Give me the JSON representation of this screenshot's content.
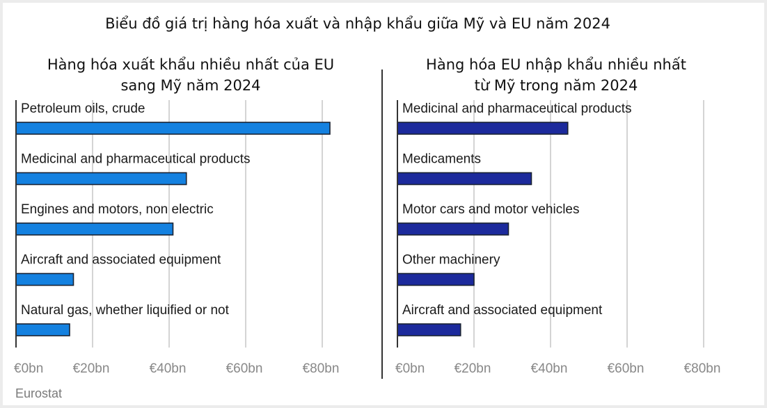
{
  "main_title": "Biểu đồ giá trị hàng hóa xuất và nhập khẩu giữa Mỹ và EU năm 2024",
  "source": "Eurostat",
  "chart_data": [
    {
      "type": "bar",
      "orientation": "horizontal",
      "title_lines": [
        "Hàng hóa xuất khẩu nhiều nhất của EU",
        "sang Mỹ năm 2024"
      ],
      "categories": [
        "Petroleum oils, crude",
        "Medicinal and pharmaceutical products",
        "Engines and motors, non electric",
        "Aircraft and associated equipment",
        "Natural gas, whether liquified or not"
      ],
      "values": [
        82,
        44.5,
        41,
        15,
        14
      ],
      "unit": "€bn",
      "xlim": [
        0,
        80
      ],
      "xticks": [
        0,
        20,
        40,
        60,
        80
      ],
      "xtick_labels": [
        "€0bn",
        "€20bn",
        "€40bn",
        "€60bn",
        "€80bn"
      ],
      "color": "#1481e0",
      "grid": true
    },
    {
      "type": "bar",
      "orientation": "horizontal",
      "title_lines": [
        "Hàng hóa EU nhập khẩu nhiều nhất",
        "từ Mỹ trong năm 2024"
      ],
      "categories": [
        "Medicinal and pharmaceutical products",
        "Medicaments",
        "Motor cars and motor vehicles",
        "Other machinery",
        "Aircraft and associated equipment"
      ],
      "values": [
        44.5,
        35,
        29,
        20,
        16.5
      ],
      "unit": "€bn",
      "xlim": [
        0,
        80
      ],
      "xticks": [
        0,
        20,
        40,
        60,
        80
      ],
      "xtick_labels": [
        "€0bn",
        "€20bn",
        "€40bn",
        "€60bn",
        "€80bn"
      ],
      "color": "#1c2a9c",
      "grid": true
    }
  ]
}
